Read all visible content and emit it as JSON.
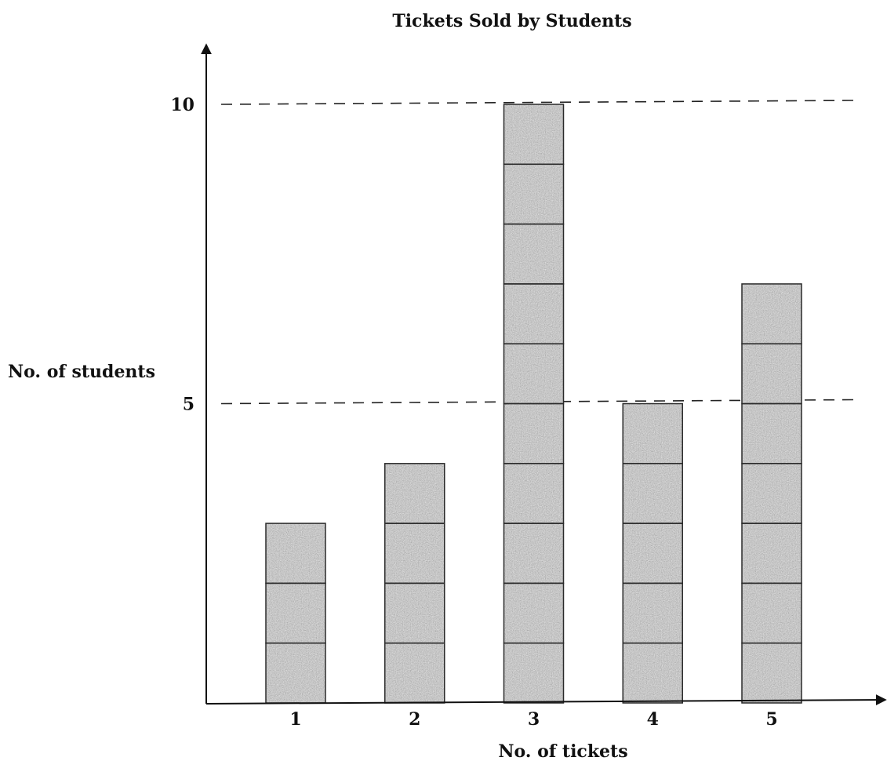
{
  "chart_data": {
    "type": "bar",
    "title": "Tickets Sold by Students",
    "xlabel": "No. of tickets",
    "ylabel": "No. of students",
    "categories": [
      "1",
      "2",
      "3",
      "4",
      "5"
    ],
    "values": [
      3,
      4,
      10,
      5,
      7
    ],
    "ylim": [
      0,
      10
    ],
    "y_ticks": [
      "5",
      "10"
    ],
    "reference_lines": [
      5,
      10
    ],
    "bar_style": "stacked unit blocks, gray stipple fill",
    "grid": false,
    "legend": "none"
  },
  "colors": {
    "bar_fill": "#9a9a9a",
    "bar_stroke": "#2a2a2a",
    "axis": "#111111"
  }
}
